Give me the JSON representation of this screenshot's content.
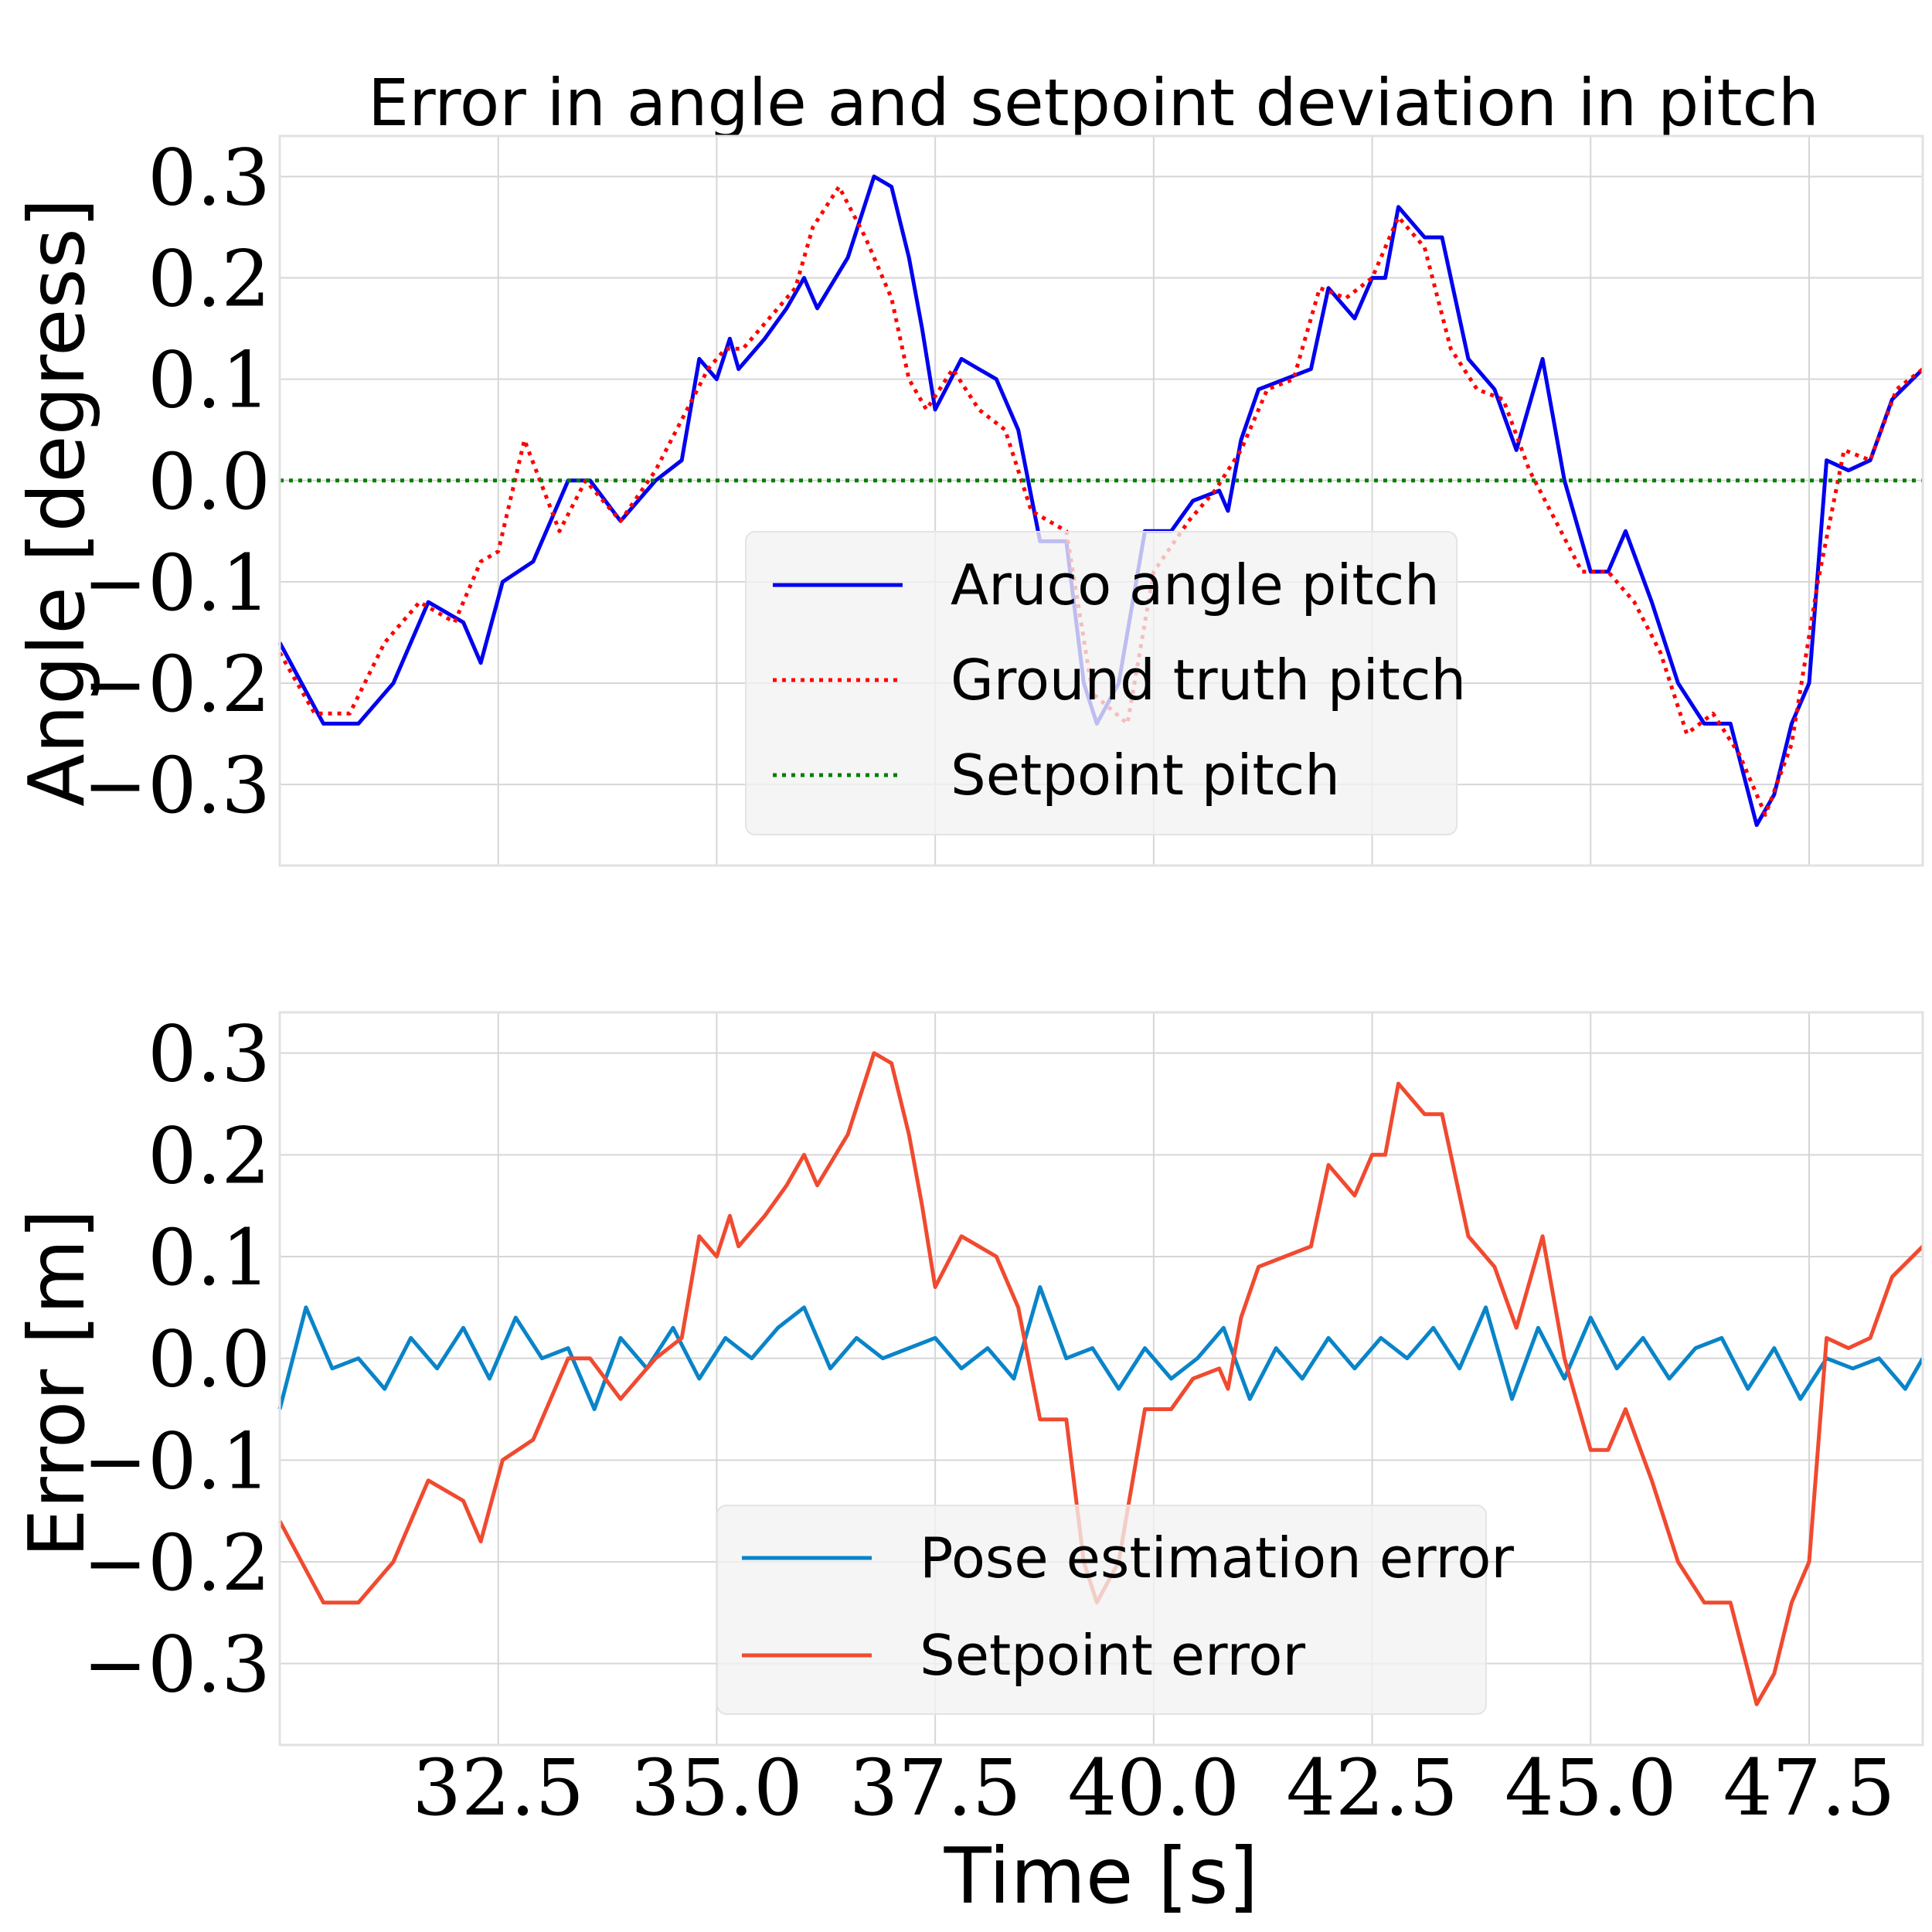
{
  "chart_data": [
    {
      "type": "line",
      "title": "Error in angle and setpoint deviation in pitch",
      "xlabel": "",
      "ylabel": "Angle [degress]",
      "xlim": [
        30,
        48.8
      ],
      "ylim": [
        -0.38,
        0.34
      ],
      "xticks": [
        32.5,
        35.0,
        37.5,
        40.0,
        42.5,
        45.0,
        47.5
      ],
      "xtick_labels": [
        "32.5",
        "35.0",
        "37.5",
        "40.0",
        "42.5",
        "45.0",
        "47.5"
      ],
      "yticks": [
        0.3,
        0.2,
        0.1,
        0.0,
        -0.1,
        -0.2,
        -0.3
      ],
      "ytick_labels": [
        "0.3",
        "0.2",
        "0.1",
        "0.0",
        "−0.1",
        "−0.2",
        "−0.3"
      ],
      "grid": true,
      "legend_position": "lower-center",
      "series": [
        {
          "name": "Aruco angle pitch",
          "color": "#0000ee",
          "style": "solid",
          "x": [
            30.0,
            30.5,
            30.9,
            31.3,
            31.7,
            32.1,
            32.3,
            32.55,
            32.9,
            33.3,
            33.55,
            33.9,
            34.3,
            34.6,
            34.8,
            35.0,
            35.15,
            35.25,
            35.55,
            35.8,
            36.0,
            36.15,
            36.5,
            36.8,
            37.0,
            37.2,
            37.35,
            37.5,
            37.8,
            38.0,
            38.2,
            38.45,
            38.7,
            39.0,
            39.2,
            39.35,
            39.6,
            39.9,
            40.2,
            40.45,
            40.75,
            40.85,
            41.0,
            41.2,
            41.5,
            41.8,
            42.0,
            42.3,
            42.5,
            42.65,
            42.8,
            43.1,
            43.3,
            43.6,
            43.9,
            44.15,
            44.45,
            44.7,
            45.0,
            45.2,
            45.4,
            45.7,
            46.0,
            46.3,
            46.6,
            46.9,
            47.1,
            47.3,
            47.5,
            47.7,
            47.95,
            48.2,
            48.45,
            48.8
          ],
          "values": [
            -0.16,
            -0.24,
            -0.24,
            -0.2,
            -0.12,
            -0.14,
            -0.18,
            -0.1,
            -0.08,
            0.0,
            0.0,
            -0.04,
            0.0,
            0.02,
            0.12,
            0.1,
            0.14,
            0.11,
            0.14,
            0.17,
            0.2,
            0.17,
            0.22,
            0.3,
            0.29,
            0.22,
            0.15,
            0.07,
            0.12,
            0.11,
            0.1,
            0.05,
            -0.06,
            -0.06,
            -0.2,
            -0.24,
            -0.2,
            -0.05,
            -0.05,
            -0.02,
            -0.01,
            -0.03,
            0.04,
            0.09,
            0.1,
            0.11,
            0.19,
            0.16,
            0.2,
            0.2,
            0.27,
            0.24,
            0.24,
            0.12,
            0.09,
            0.03,
            0.12,
            0.0,
            -0.09,
            -0.09,
            -0.05,
            -0.12,
            -0.2,
            -0.24,
            -0.24,
            -0.34,
            -0.31,
            -0.24,
            -0.2,
            0.02,
            0.01,
            0.02,
            0.08,
            0.11
          ]
        },
        {
          "name": "Ground truth pitch",
          "color": "#ff0000",
          "style": "dotted",
          "x": [
            30.0,
            30.4,
            30.8,
            31.2,
            31.6,
            32.0,
            32.3,
            32.5,
            32.8,
            33.2,
            33.5,
            33.9,
            34.3,
            34.6,
            34.9,
            35.1,
            35.3,
            35.6,
            35.9,
            36.1,
            36.4,
            36.7,
            37.0,
            37.2,
            37.4,
            37.7,
            38.0,
            38.3,
            38.6,
            39.0,
            39.3,
            39.7,
            40.0,
            40.4,
            40.7,
            41.0,
            41.3,
            41.6,
            41.9,
            42.2,
            42.5,
            42.8,
            43.1,
            43.4,
            43.7,
            44.0,
            44.3,
            44.6,
            44.9,
            45.2,
            45.5,
            45.8,
            46.1,
            46.4,
            46.7,
            47.0,
            47.3,
            47.6,
            47.9,
            48.2,
            48.5,
            48.8
          ],
          "values": [
            -0.17,
            -0.23,
            -0.23,
            -0.16,
            -0.12,
            -0.14,
            -0.08,
            -0.07,
            0.04,
            -0.05,
            0.0,
            -0.04,
            0.01,
            0.06,
            0.11,
            0.13,
            0.13,
            0.16,
            0.19,
            0.25,
            0.29,
            0.24,
            0.18,
            0.1,
            0.07,
            0.11,
            0.07,
            0.05,
            -0.03,
            -0.05,
            -0.21,
            -0.24,
            -0.09,
            -0.04,
            -0.01,
            0.03,
            0.09,
            0.1,
            0.19,
            0.18,
            0.2,
            0.26,
            0.23,
            0.13,
            0.09,
            0.08,
            0.01,
            -0.04,
            -0.09,
            -0.09,
            -0.12,
            -0.17,
            -0.25,
            -0.23,
            -0.27,
            -0.33,
            -0.26,
            -0.1,
            0.03,
            0.02,
            0.09,
            0.11
          ]
        },
        {
          "name": "Setpoint pitch",
          "color": "#008000",
          "style": "dotted",
          "x": [
            30.0,
            48.8
          ],
          "values": [
            0.0,
            0.0
          ]
        }
      ]
    },
    {
      "type": "line",
      "title": "",
      "xlabel": "Time [s]",
      "ylabel": "Error [m]",
      "xlim": [
        30,
        48.8
      ],
      "ylim": [
        -0.38,
        0.34
      ],
      "xticks": [
        32.5,
        35.0,
        37.5,
        40.0,
        42.5,
        45.0,
        47.5
      ],
      "xtick_labels": [
        "32.5",
        "35.0",
        "37.5",
        "40.0",
        "42.5",
        "45.0",
        "47.5"
      ],
      "yticks": [
        0.3,
        0.2,
        0.1,
        0.0,
        -0.1,
        -0.2,
        -0.3
      ],
      "ytick_labels": [
        "0.3",
        "0.2",
        "0.1",
        "0.0",
        "−0.1",
        "−0.2",
        "−0.3"
      ],
      "grid": true,
      "legend_position": "lower-center",
      "series": [
        {
          "name": "Pose estimation error",
          "color": "#0a84c8",
          "style": "solid",
          "x": [
            30.0,
            30.3,
            30.6,
            30.9,
            31.2,
            31.5,
            31.8,
            32.1,
            32.4,
            32.7,
            33.0,
            33.3,
            33.6,
            33.9,
            34.2,
            34.5,
            34.8,
            35.1,
            35.4,
            35.7,
            36.0,
            36.3,
            36.6,
            36.9,
            37.2,
            37.5,
            37.8,
            38.1,
            38.4,
            38.7,
            39.0,
            39.3,
            39.6,
            39.9,
            40.2,
            40.5,
            40.8,
            41.1,
            41.4,
            41.7,
            42.0,
            42.3,
            42.6,
            42.9,
            43.2,
            43.5,
            43.8,
            44.1,
            44.4,
            44.7,
            45.0,
            45.3,
            45.6,
            45.9,
            46.2,
            46.5,
            46.8,
            47.1,
            47.4,
            47.7,
            48.0,
            48.3,
            48.6,
            48.8
          ],
          "values": [
            -0.05,
            0.05,
            -0.01,
            0.0,
            -0.03,
            0.02,
            -0.01,
            0.03,
            -0.02,
            0.04,
            0.0,
            0.01,
            -0.05,
            0.02,
            -0.01,
            0.03,
            -0.02,
            0.02,
            0.0,
            0.03,
            0.05,
            -0.01,
            0.02,
            0.0,
            0.01,
            0.02,
            -0.01,
            0.01,
            -0.02,
            0.07,
            0.0,
            0.01,
            -0.03,
            0.01,
            -0.02,
            0.0,
            0.03,
            -0.04,
            0.01,
            -0.02,
            0.02,
            -0.01,
            0.02,
            0.0,
            0.03,
            -0.01,
            0.05,
            -0.04,
            0.03,
            -0.02,
            0.04,
            -0.01,
            0.02,
            -0.02,
            0.01,
            0.02,
            -0.03,
            0.01,
            -0.04,
            0.0,
            -0.01,
            0.0,
            -0.03,
            0.0
          ]
        },
        {
          "name": "Setpoint error",
          "color": "#f04a30",
          "style": "solid",
          "x": [
            30.0,
            30.5,
            30.9,
            31.3,
            31.7,
            32.1,
            32.3,
            32.55,
            32.9,
            33.3,
            33.55,
            33.9,
            34.3,
            34.6,
            34.8,
            35.0,
            35.15,
            35.25,
            35.55,
            35.8,
            36.0,
            36.15,
            36.5,
            36.8,
            37.0,
            37.2,
            37.35,
            37.5,
            37.8,
            38.0,
            38.2,
            38.45,
            38.7,
            39.0,
            39.2,
            39.35,
            39.6,
            39.9,
            40.2,
            40.45,
            40.75,
            40.85,
            41.0,
            41.2,
            41.5,
            41.8,
            42.0,
            42.3,
            42.5,
            42.65,
            42.8,
            43.1,
            43.3,
            43.6,
            43.9,
            44.15,
            44.45,
            44.7,
            45.0,
            45.2,
            45.4,
            45.7,
            46.0,
            46.3,
            46.6,
            46.9,
            47.1,
            47.3,
            47.5,
            47.7,
            47.95,
            48.2,
            48.45,
            48.8
          ],
          "values": [
            -0.16,
            -0.24,
            -0.24,
            -0.2,
            -0.12,
            -0.14,
            -0.18,
            -0.1,
            -0.08,
            0.0,
            0.0,
            -0.04,
            0.0,
            0.02,
            0.12,
            0.1,
            0.14,
            0.11,
            0.14,
            0.17,
            0.2,
            0.17,
            0.22,
            0.3,
            0.29,
            0.22,
            0.15,
            0.07,
            0.12,
            0.11,
            0.1,
            0.05,
            -0.06,
            -0.06,
            -0.2,
            -0.24,
            -0.2,
            -0.05,
            -0.05,
            -0.02,
            -0.01,
            -0.03,
            0.04,
            0.09,
            0.1,
            0.11,
            0.19,
            0.16,
            0.2,
            0.2,
            0.27,
            0.24,
            0.24,
            0.12,
            0.09,
            0.03,
            0.12,
            0.0,
            -0.09,
            -0.09,
            -0.05,
            -0.12,
            -0.2,
            -0.24,
            -0.24,
            -0.34,
            -0.31,
            -0.24,
            -0.2,
            0.02,
            0.01,
            0.02,
            0.08,
            0.11
          ]
        }
      ]
    }
  ]
}
